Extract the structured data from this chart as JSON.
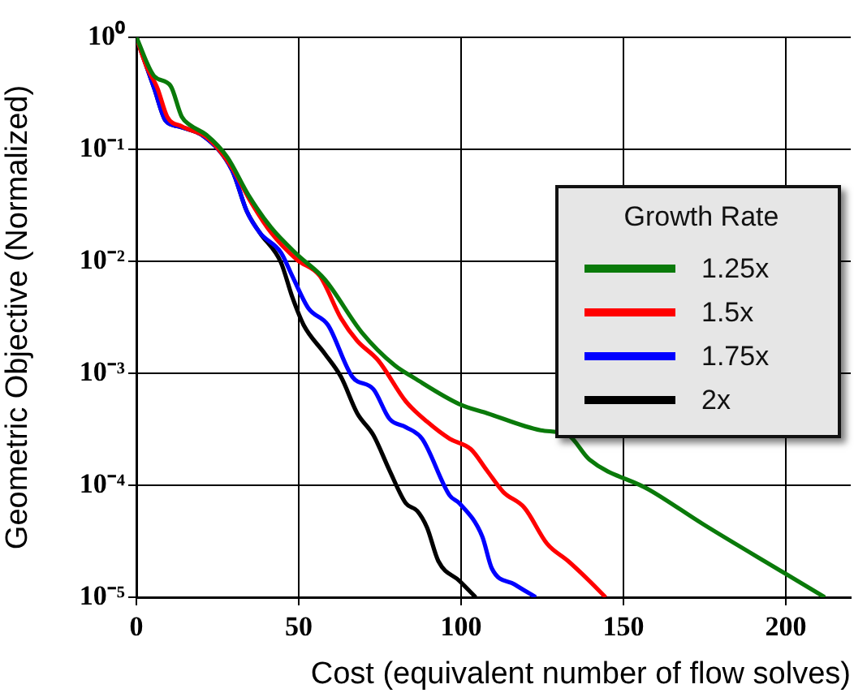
{
  "chart_data": {
    "type": "line",
    "xlabel": "Cost (equivalent number of flow solves)",
    "ylabel": "Geometric Objective (Normalized)",
    "legend_title": "Growth Rate",
    "log": "y",
    "grid": true,
    "legend": "right",
    "marker": "none",
    "line_style": "solid",
    "xlim": [
      0,
      220
    ],
    "xticks": [
      0,
      50,
      100,
      150,
      200
    ],
    "ylim": [
      1e-05,
      1
    ],
    "yticks": [
      {
        "value": 1e-05,
        "label": "10⁻⁵"
      },
      {
        "value": 0.0001,
        "label": "10⁻⁴"
      },
      {
        "value": 0.001,
        "label": "10⁻³"
      },
      {
        "value": 0.01,
        "label": "10⁻²"
      },
      {
        "value": 0.1,
        "label": "10⁻¹"
      },
      {
        "value": 1,
        "label": "10⁰"
      }
    ],
    "series": [
      {
        "name": "1.25x",
        "color": "#0a7a0a",
        "x": [
          0,
          5.5,
          10.5,
          14,
          16.5,
          21.5,
          28,
          34.5,
          41.5,
          49.5,
          58,
          69.5,
          79.5,
          85.5,
          99.5,
          108,
          124.5,
          133,
          139.5,
          158,
          174.5,
          199.5,
          212
        ],
        "values": [
          1,
          0.45,
          0.37,
          0.195,
          0.165,
          0.135,
          0.085,
          0.039,
          0.02,
          0.0115,
          0.0069,
          0.0023,
          0.00118,
          0.00091,
          0.00053,
          0.00044,
          0.00031,
          0.00028,
          0.00017,
          9.1e-05,
          4.5e-05,
          1.65e-05,
          1e-05
        ]
      },
      {
        "name": "1.5x",
        "color": "#ff0000",
        "x": [
          0,
          3,
          6.5,
          9.5,
          14,
          22,
          29,
          35.5,
          41.5,
          49.5,
          56.5,
          63,
          68,
          74.5,
          83,
          89.5,
          96.5,
          103,
          108,
          113,
          119.5,
          126.5,
          133,
          139.5,
          144.5
        ],
        "values": [
          1,
          0.56,
          0.35,
          0.195,
          0.16,
          0.126,
          0.072,
          0.033,
          0.018,
          0.0103,
          0.0074,
          0.0031,
          0.00195,
          0.0013,
          0.00056,
          0.00037,
          0.00026,
          0.00021,
          0.000135,
          8.7e-05,
          6.3e-05,
          3e-05,
          2.1e-05,
          1.4e-05,
          1e-05
        ]
      },
      {
        "name": "1.75x",
        "color": "#0000ff",
        "x": [
          0,
          5.5,
          9,
          13,
          21.5,
          29.5,
          34,
          38,
          44.5,
          48,
          53,
          59,
          66.5,
          73,
          78,
          83,
          88,
          96.5,
          99.5,
          106.5,
          109.5,
          116.5,
          123
        ],
        "values": [
          1,
          0.35,
          0.18,
          0.16,
          0.126,
          0.065,
          0.028,
          0.018,
          0.012,
          0.0074,
          0.0038,
          0.0027,
          0.00093,
          0.00072,
          0.00039,
          0.00033,
          0.00026,
          8.1e-05,
          6.9e-05,
          3.5e-05,
          1.8e-05,
          1.3e-05,
          1e-05
        ]
      },
      {
        "name": "2x",
        "color": "#000000",
        "x": [
          0,
          5.5,
          9,
          13,
          21.5,
          29.5,
          34,
          38,
          44.5,
          48,
          51.5,
          58,
          63,
          68,
          73,
          78,
          83,
          86.5,
          89.5,
          93,
          99.5,
          104.5
        ],
        "values": [
          1,
          0.35,
          0.18,
          0.16,
          0.126,
          0.065,
          0.028,
          0.018,
          0.0098,
          0.0048,
          0.0027,
          0.0015,
          0.00093,
          0.00044,
          0.00028,
          0.000135,
          6.9e-05,
          5.9e-05,
          4.2e-05,
          2.1e-05,
          1.4e-05,
          1e-05
        ]
      }
    ]
  }
}
